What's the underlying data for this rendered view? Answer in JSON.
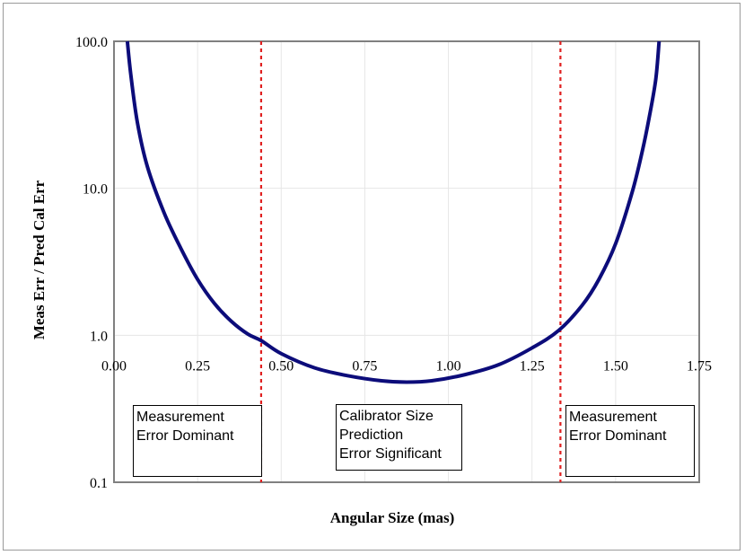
{
  "chart_data": {
    "type": "line",
    "xlabel": "Angular Size (mas)",
    "ylabel": "Meas Err / Pred Cal Err",
    "xlim": [
      0,
      1.75
    ],
    "ylim": [
      0.1,
      100
    ],
    "y_scale": "log",
    "grid": true,
    "x_ticks": [
      "0.00",
      "0.25",
      "0.50",
      "0.75",
      "1.00",
      "1.25",
      "1.50",
      "1.75"
    ],
    "y_ticks": [
      "0.1",
      "1.0",
      "10.0",
      "100.0"
    ],
    "series": [
      {
        "color": "#0c0c7a",
        "x": [
          0.04,
          0.05,
          0.07,
          0.1,
          0.15,
          0.2,
          0.25,
          0.3,
          0.35,
          0.4,
          0.44,
          0.5,
          0.6,
          0.7,
          0.8,
          0.875,
          0.95,
          1.05,
          1.15,
          1.25,
          1.33,
          1.4,
          1.45,
          1.5,
          1.55,
          1.58,
          1.6,
          1.62,
          1.63
        ],
        "y": [
          100,
          60,
          28,
          14,
          6.8,
          3.9,
          2.4,
          1.65,
          1.25,
          1.02,
          0.92,
          0.75,
          0.6,
          0.53,
          0.49,
          0.48,
          0.49,
          0.54,
          0.63,
          0.82,
          1.08,
          1.6,
          2.4,
          4.2,
          9.5,
          18,
          30,
          55,
          100
        ]
      }
    ],
    "reference_lines": [
      {
        "x": 0.44,
        "color": "#e02020",
        "style": "dotted"
      },
      {
        "x": 1.335,
        "color": "#e02020",
        "style": "dotted"
      }
    ],
    "annotations": [
      {
        "lines": [
          "Measurement",
          "Error Dominant"
        ]
      },
      {
        "lines": [
          "Calibrator Size",
          "Prediction",
          "Error Significant"
        ]
      },
      {
        "lines": [
          "Measurement",
          "Error Dominant"
        ]
      }
    ]
  }
}
